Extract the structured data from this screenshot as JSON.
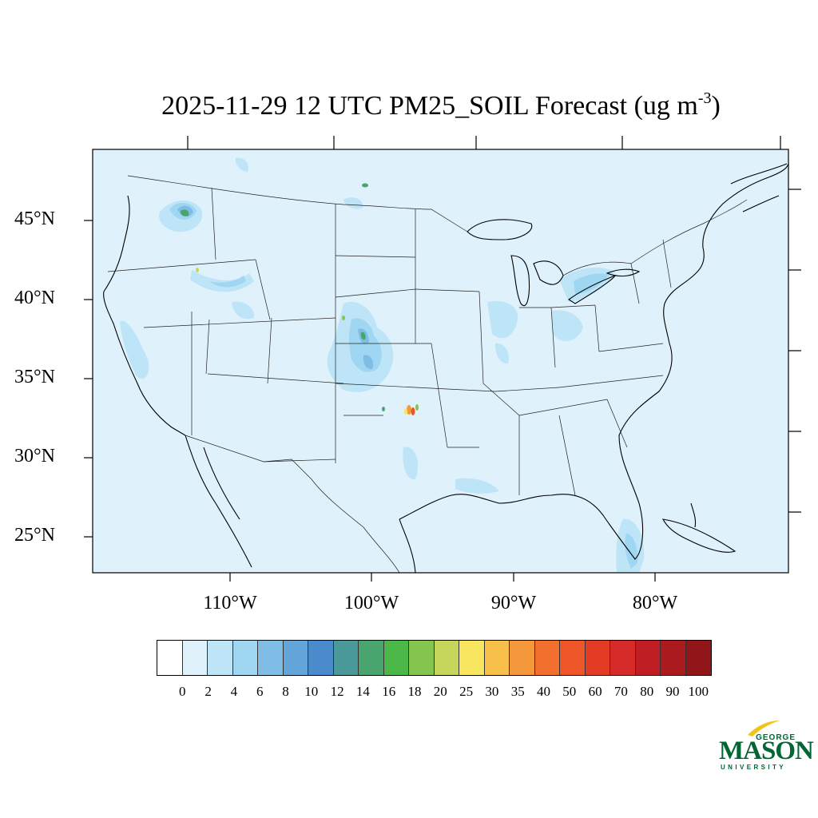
{
  "header": {
    "title_main": "2025-11-29 12 UTC PM25_SOIL Forecast (ug m",
    "title_sup": "-3",
    "title_end": ")"
  },
  "map": {
    "background_color": "#dff1fb",
    "lat_labels": [
      "45°N",
      "40°N",
      "35°N",
      "30°N",
      "25°N"
    ],
    "lon_labels": [
      "110°W",
      "100°W",
      "90°W",
      "80°W"
    ]
  },
  "colorbar": {
    "colors": [
      "#ffffff",
      "#dff1fb",
      "#bde5f7",
      "#9fd6f2",
      "#80bde6",
      "#65a6da",
      "#4a8ccb",
      "#4a9a9a",
      "#48a56e",
      "#4cb84a",
      "#86c450",
      "#c4d65b",
      "#f8e660",
      "#f8bf4b",
      "#f5983b",
      "#f26f2d",
      "#ee5629",
      "#e23c25",
      "#d52a27",
      "#bf1e24",
      "#aa1a1e",
      "#901619"
    ],
    "labels": [
      "0",
      "2",
      "4",
      "6",
      "8",
      "10",
      "12",
      "14",
      "16",
      "18",
      "20",
      "25",
      "30",
      "35",
      "40",
      "50",
      "60",
      "70",
      "80",
      "90",
      "100"
    ]
  },
  "logo": {
    "line1": "GEORGE",
    "line2": "MASON",
    "line3": "UNIVERSITY"
  }
}
